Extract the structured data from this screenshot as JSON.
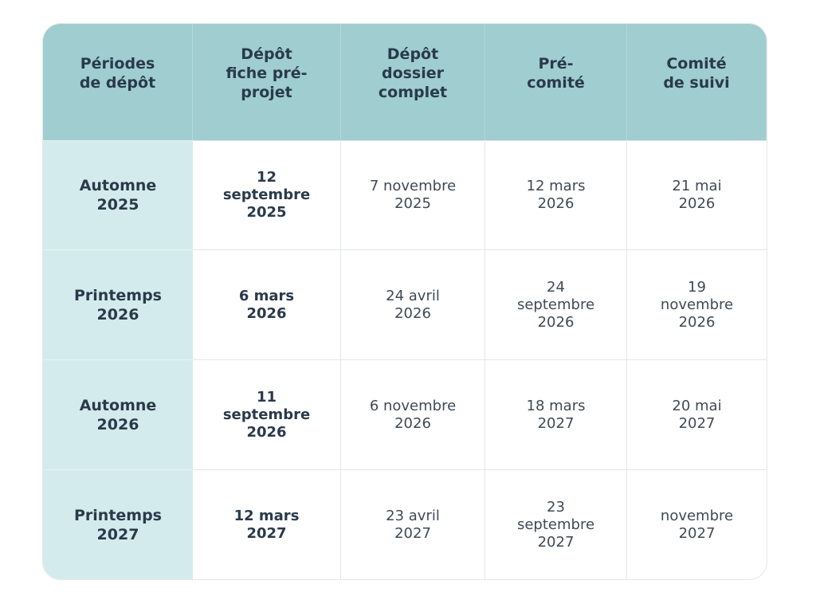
{
  "colors": {
    "header_bg": "#9fcdd0",
    "period_bg": "#d3ebec",
    "text_dark": "#2a3a4a",
    "text_regular": "#3f4a55"
  },
  "table": {
    "headers": [
      "Périodes\nde dépôt",
      "Dépôt\nfiche pré-\nprojet",
      "Dépôt\ndossier\ncomplet",
      "Pré-\ncomité",
      "Comité\nde suivi"
    ],
    "rows": [
      {
        "period": "Automne\n2025",
        "fiche": "12\nseptembre\n2025",
        "dossier": "7 novembre\n2025",
        "precomite": "12 mars\n2026",
        "suivi": "21 mai\n2026"
      },
      {
        "period": "Printemps\n2026",
        "fiche": "6 mars\n2026",
        "dossier": "24 avril\n2026",
        "precomite": "24\nseptembre\n2026",
        "suivi": "19\nnovembre\n2026"
      },
      {
        "period": "Automne\n2026",
        "fiche": "11\nseptembre\n2026",
        "dossier": "6 novembre\n2026",
        "precomite": "18 mars\n2027",
        "suivi": "20 mai\n2027"
      },
      {
        "period": "Printemps\n2027",
        "fiche": "12 mars\n2027",
        "dossier": "23 avril\n2027",
        "precomite": "23\nseptembre\n2027",
        "suivi": "novembre\n2027"
      }
    ]
  }
}
